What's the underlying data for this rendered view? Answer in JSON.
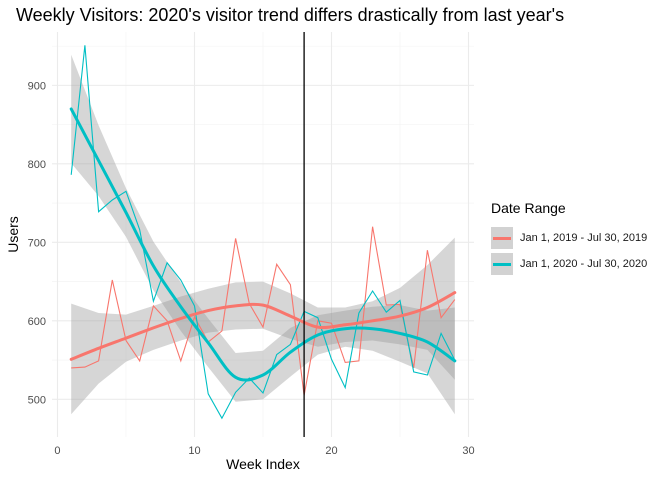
{
  "chart_data": {
    "type": "line",
    "title": "Weekly Visitors: 2020's visitor trend differs drastically from last year's",
    "xlabel": "Week Index",
    "ylabel": "Users",
    "xlim": [
      -0.4,
      30.4
    ],
    "ylim": [
      452,
      968
    ],
    "x_ticks": [
      0,
      10,
      20,
      30
    ],
    "y_ticks": [
      500,
      600,
      700,
      800,
      900
    ],
    "grid": true,
    "vline_x": 18,
    "legend": {
      "title": "Date Range",
      "position": "right"
    },
    "x": [
      1,
      2,
      3,
      4,
      5,
      6,
      7,
      8,
      9,
      10,
      11,
      12,
      13,
      14,
      15,
      16,
      17,
      18,
      19,
      20,
      21,
      22,
      23,
      24,
      25,
      26,
      27,
      28,
      29
    ],
    "series": [
      {
        "name": "Jan 1, 2019 - Jul 30, 2019",
        "color": "#F8766D",
        "values": [
          540,
          541,
          549,
          652,
          575,
          549,
          619,
          600,
          549,
          605,
          573,
          587,
          705,
          622,
          592,
          672,
          646,
          505,
          600,
          597,
          547,
          549,
          720,
          620,
          621,
          540,
          690,
          604,
          627
        ],
        "smooth": {
          "x": [
            1,
            3,
            5,
            7,
            9,
            11,
            13,
            15,
            17,
            19,
            21,
            23,
            25,
            27,
            29
          ],
          "y": [
            551,
            565,
            578,
            591,
            603,
            613,
            619,
            620,
            606,
            592,
            595,
            600,
            606,
            617,
            636
          ],
          "lower": [
            481,
            520,
            548,
            563,
            575,
            585,
            589,
            590,
            577,
            567,
            573,
            575,
            570,
            563,
            525
          ],
          "upper": [
            622,
            610,
            608,
            619,
            631,
            641,
            649,
            650,
            635,
            617,
            617,
            625,
            642,
            671,
            706
          ]
        }
      },
      {
        "name": "Jan 1, 2020 - Jul 30, 2020",
        "color": "#00BFC4",
        "values": [
          786,
          951,
          739,
          754,
          765,
          716,
          625,
          674,
          652,
          619,
          507,
          476,
          509,
          527,
          508,
          557,
          570,
          612,
          604,
          551,
          515,
          610,
          638,
          611,
          626,
          535,
          531,
          584,
          550
        ],
        "smooth": {
          "x": [
            1,
            3,
            5,
            7,
            9,
            11,
            13,
            15,
            17,
            19,
            21,
            23,
            25,
            27,
            29
          ],
          "y": [
            870,
            804,
            738,
            670,
            618,
            572,
            528,
            531,
            560,
            582,
            590,
            590,
            584,
            573,
            549
          ],
          "lower": [
            801,
            759,
            707,
            639,
            587,
            541,
            497,
            500,
            529,
            557,
            567,
            562,
            548,
            533,
            481
          ],
          "upper": [
            939,
            849,
            769,
            701,
            649,
            603,
            559,
            562,
            591,
            607,
            613,
            618,
            620,
            613,
            617
          ]
        }
      }
    ]
  }
}
